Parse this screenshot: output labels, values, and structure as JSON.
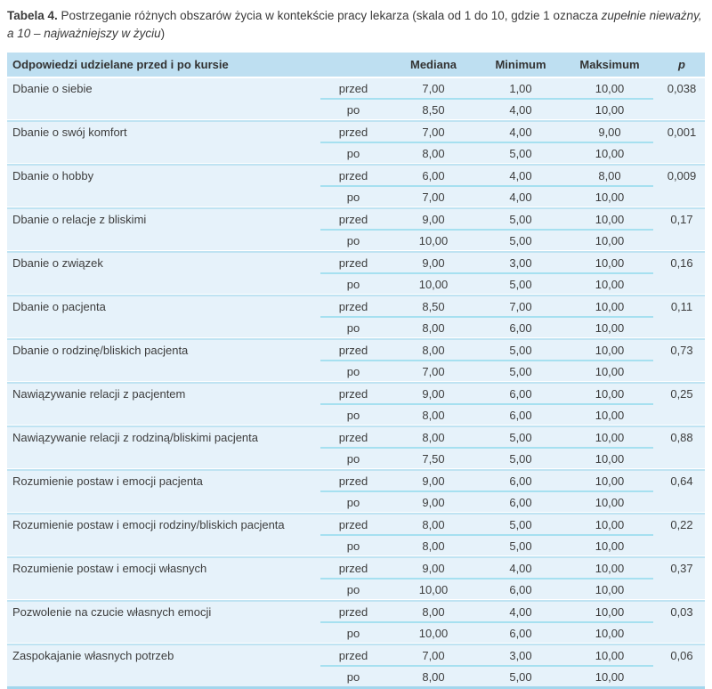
{
  "caption": {
    "label": "Tabela 4.",
    "regular1": " Postrzeganie różnych obszarów życia w kontekście pracy lekarza (skala od 1 do 10, gdzie 1 oznacza ",
    "italic": "zupełnie nieważny, a 10 – najważniejszy w życiu",
    "regular2": ")"
  },
  "table": {
    "header": {
      "col_main": "Odpowiedzi udzielane przed i po kursie",
      "col_mediana": "Mediana",
      "col_minimum": "Minimum",
      "col_maksimum": "Maksimum",
      "col_p": "p"
    },
    "phase_labels": {
      "before": "przed",
      "after": "po"
    },
    "rows": [
      {
        "label": "Dbanie o siebie",
        "przed": {
          "mediana": "7,00",
          "minimum": "1,00",
          "maksimum": "10,00",
          "p": "0,038"
        },
        "po": {
          "mediana": "8,50",
          "minimum": "4,00",
          "maksimum": "10,00"
        }
      },
      {
        "label": "Dbanie o swój komfort",
        "przed": {
          "mediana": "7,00",
          "minimum": "4,00",
          "maksimum": "9,00",
          "p": "0,001"
        },
        "po": {
          "mediana": "8,00",
          "minimum": "5,00",
          "maksimum": "10,00"
        }
      },
      {
        "label": "Dbanie o hobby",
        "przed": {
          "mediana": "6,00",
          "minimum": "4,00",
          "maksimum": "8,00",
          "p": "0,009"
        },
        "po": {
          "mediana": "7,00",
          "minimum": "4,00",
          "maksimum": "10,00"
        }
      },
      {
        "label": "Dbanie o relacje z bliskimi",
        "przed": {
          "mediana": "9,00",
          "minimum": "5,00",
          "maksimum": "10,00",
          "p": "0,17"
        },
        "po": {
          "mediana": "10,00",
          "minimum": "5,00",
          "maksimum": "10,00"
        }
      },
      {
        "label": "Dbanie o związek",
        "przed": {
          "mediana": "9,00",
          "minimum": "3,00",
          "maksimum": "10,00",
          "p": "0,16"
        },
        "po": {
          "mediana": "10,00",
          "minimum": "5,00",
          "maksimum": "10,00"
        }
      },
      {
        "label": "Dbanie o pacjenta",
        "przed": {
          "mediana": "8,50",
          "minimum": "7,00",
          "maksimum": "10,00",
          "p": "0,11"
        },
        "po": {
          "mediana": "8,00",
          "minimum": "6,00",
          "maksimum": "10,00"
        }
      },
      {
        "label": "Dbanie o rodzinę/bliskich pacjenta",
        "przed": {
          "mediana": "8,00",
          "minimum": "5,00",
          "maksimum": "10,00",
          "p": "0,73"
        },
        "po": {
          "mediana": "7,00",
          "minimum": "5,00",
          "maksimum": "10,00"
        }
      },
      {
        "label": "Nawiązywanie relacji z pacjentem",
        "przed": {
          "mediana": "9,00",
          "minimum": "6,00",
          "maksimum": "10,00",
          "p": "0,25"
        },
        "po": {
          "mediana": "8,00",
          "minimum": "6,00",
          "maksimum": "10,00"
        }
      },
      {
        "label": "Nawiązywanie relacji z rodziną/bliskimi pacjenta",
        "przed": {
          "mediana": "8,00",
          "minimum": "5,00",
          "maksimum": "10,00",
          "p": "0,88"
        },
        "po": {
          "mediana": "7,50",
          "minimum": "5,00",
          "maksimum": "10,00"
        }
      },
      {
        "label": "Rozumienie postaw i emocji pacjenta",
        "przed": {
          "mediana": "9,00",
          "minimum": "6,00",
          "maksimum": "10,00",
          "p": "0,64"
        },
        "po": {
          "mediana": "9,00",
          "minimum": "6,00",
          "maksimum": "10,00"
        }
      },
      {
        "label": "Rozumienie postaw i emocji rodziny/bliskich pacjenta",
        "przed": {
          "mediana": "8,00",
          "minimum": "5,00",
          "maksimum": "10,00",
          "p": "0,22"
        },
        "po": {
          "mediana": "8,00",
          "minimum": "5,00",
          "maksimum": "10,00"
        }
      },
      {
        "label": "Rozumienie postaw i emocji własnych",
        "przed": {
          "mediana": "9,00",
          "minimum": "4,00",
          "maksimum": "10,00",
          "p": "0,37"
        },
        "po": {
          "mediana": "10,00",
          "minimum": "6,00",
          "maksimum": "10,00"
        }
      },
      {
        "label": "Pozwolenie na czucie własnych emocji",
        "przed": {
          "mediana": "8,00",
          "minimum": "4,00",
          "maksimum": "10,00",
          "p": "0,03"
        },
        "po": {
          "mediana": "10,00",
          "minimum": "6,00",
          "maksimum": "10,00"
        }
      },
      {
        "label": "Zaspokajanie własnych potrzeb",
        "przed": {
          "mediana": "7,00",
          "minimum": "3,00",
          "maksimum": "10,00",
          "p": "0,06"
        },
        "po": {
          "mediana": "8,00",
          "minimum": "5,00",
          "maksimum": "10,00"
        }
      }
    ]
  },
  "colors": {
    "header_bg": "#bedff1",
    "row_bg": "#e6f2fa",
    "group_separator": "#bfe3f2",
    "phase_divider": "#a6e0f0",
    "table_bottom_border": "#a3d6ed",
    "text": "#3d3d3d"
  }
}
